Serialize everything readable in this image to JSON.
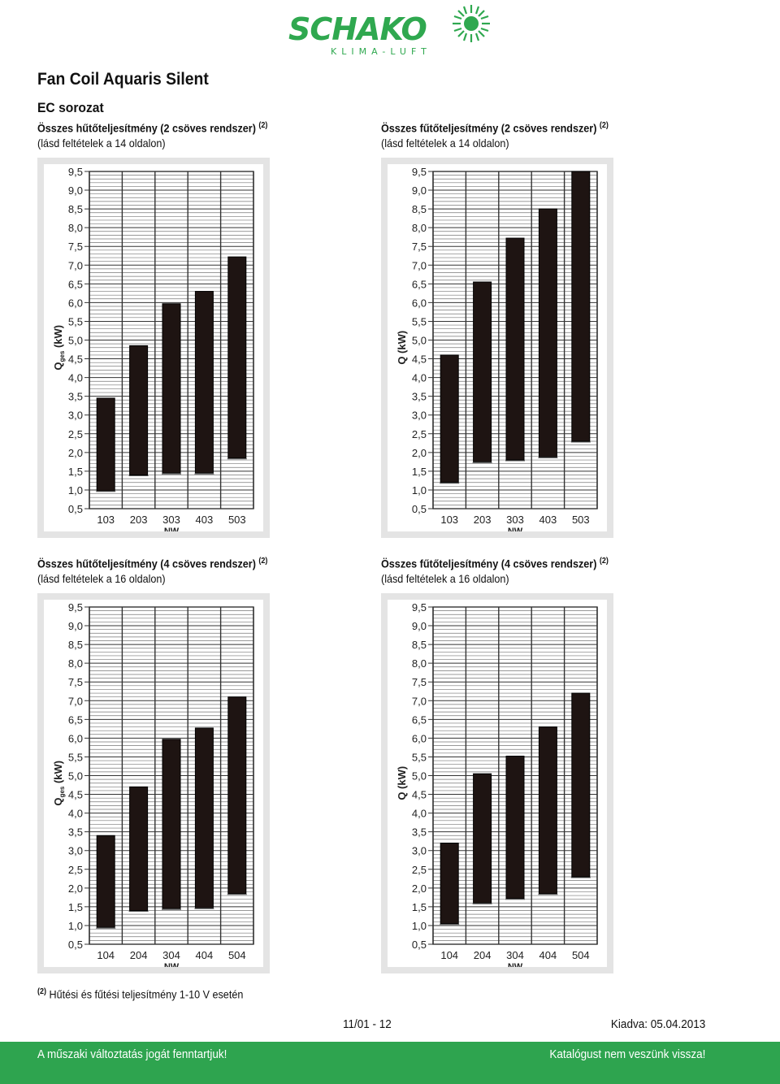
{
  "brand": {
    "name": "SCHAKO",
    "tagline": "KLIMA-LUFT",
    "color": "#2fa84f"
  },
  "header": {
    "title": "Fan Coil Aquaris Silent",
    "section": "EC sorozat"
  },
  "charts": [
    {
      "title": "Összes hűtőteljesítmény (2 csöves rendszer)",
      "superscript": "(2)",
      "subtitle": "(lásd feltételek a 14 oldalon)",
      "ylabel": "Q",
      "ylabel_sub": "ges",
      "ylabel_unit": " (kW)",
      "xlabel": "NW",
      "chart_data": {
        "type": "bar",
        "categories": [
          "103",
          "203",
          "303",
          "403",
          "503"
        ],
        "ranges": [
          [
            0.98,
            3.45
          ],
          [
            1.4,
            4.85
          ],
          [
            1.45,
            5.97
          ],
          [
            1.45,
            6.3
          ],
          [
            1.85,
            7.22
          ]
        ],
        "yticks": [
          "0,5",
          "1,0",
          "1,5",
          "2,0",
          "2,5",
          "3,0",
          "3,5",
          "4,0",
          "4,5",
          "5,0",
          "5,5",
          "6,0",
          "6,5",
          "7,0",
          "7,5",
          "8,0",
          "8,5",
          "9,0",
          "9,5"
        ],
        "ylim": [
          0.5,
          9.5
        ]
      }
    },
    {
      "title": "Összes fűtőteljesítmény (2 csöves rendszer)",
      "superscript": "(2)",
      "subtitle": "(lásd feltételek a 14 oldalon)",
      "ylabel": "Q",
      "ylabel_sub": "",
      "ylabel_unit": " (kW)",
      "xlabel": "NW",
      "chart_data": {
        "type": "bar",
        "categories": [
          "103",
          "203",
          "303",
          "403",
          "503"
        ],
        "ranges": [
          [
            1.2,
            4.6
          ],
          [
            1.75,
            6.55
          ],
          [
            1.8,
            7.72
          ],
          [
            1.88,
            8.5
          ],
          [
            2.3,
            9.5
          ]
        ],
        "yticks": [
          "0,5",
          "1,0",
          "1,5",
          "2,0",
          "2,5",
          "3,0",
          "3,5",
          "4,0",
          "4,5",
          "5,0",
          "5,5",
          "6,0",
          "6,5",
          "7,0",
          "7,5",
          "8,0",
          "8,5",
          "9,0",
          "9,5"
        ],
        "ylim": [
          0.5,
          9.5
        ]
      }
    },
    {
      "title": "Összes hűtőteljesítmény (4 csöves rendszer)",
      "superscript": "(2)",
      "subtitle": "(lásd feltételek a 16 oldalon)",
      "ylabel": "Q",
      "ylabel_sub": "ges",
      "ylabel_unit": " (kW)",
      "xlabel": "NW",
      "chart_data": {
        "type": "bar",
        "categories": [
          "104",
          "204",
          "304",
          "404",
          "504"
        ],
        "ranges": [
          [
            0.95,
            3.4
          ],
          [
            1.4,
            4.7
          ],
          [
            1.45,
            5.97
          ],
          [
            1.47,
            6.27
          ],
          [
            1.85,
            7.1
          ]
        ],
        "yticks": [
          "0,5",
          "1,0",
          "1,5",
          "2,0",
          "2,5",
          "3,0",
          "3,5",
          "4,0",
          "4,5",
          "5,0",
          "5,5",
          "6,0",
          "6,5",
          "7,0",
          "7,5",
          "8,0",
          "8,5",
          "9,0",
          "9,5"
        ],
        "ylim": [
          0.5,
          9.5
        ]
      }
    },
    {
      "title": "Összes fűtőteljesítmény (4 csöves rendszer)",
      "superscript": "(2)",
      "subtitle": "(lásd feltételek a 16 oldalon)",
      "ylabel": "Q",
      "ylabel_sub": "",
      "ylabel_unit": " (kW)",
      "xlabel": "NW",
      "chart_data": {
        "type": "bar",
        "categories": [
          "104",
          "204",
          "304",
          "404",
          "504"
        ],
        "ranges": [
          [
            1.05,
            3.2
          ],
          [
            1.6,
            5.05
          ],
          [
            1.72,
            5.52
          ],
          [
            1.85,
            6.3
          ],
          [
            2.3,
            7.2
          ]
        ],
        "yticks": [
          "0,5",
          "1,0",
          "1,5",
          "2,0",
          "2,5",
          "3,0",
          "3,5",
          "4,0",
          "4,5",
          "5,0",
          "5,5",
          "6,0",
          "6,5",
          "7,0",
          "7,5",
          "8,0",
          "8,5",
          "9,0",
          "9,5"
        ],
        "ylim": [
          0.5,
          9.5
        ]
      }
    }
  ],
  "footnote": {
    "mark": "(2)",
    "text": " Hűtési és fűtési teljesítmény 1-10 V esetén"
  },
  "footer": {
    "page": "11/01 - 12",
    "issued": "Kiadva: 05.04.2013",
    "left": "A műszaki változtatás jogát fenntartjuk!",
    "right": "Katalógust nem veszünk vissza!",
    "bar_color": "#2ea44f"
  }
}
